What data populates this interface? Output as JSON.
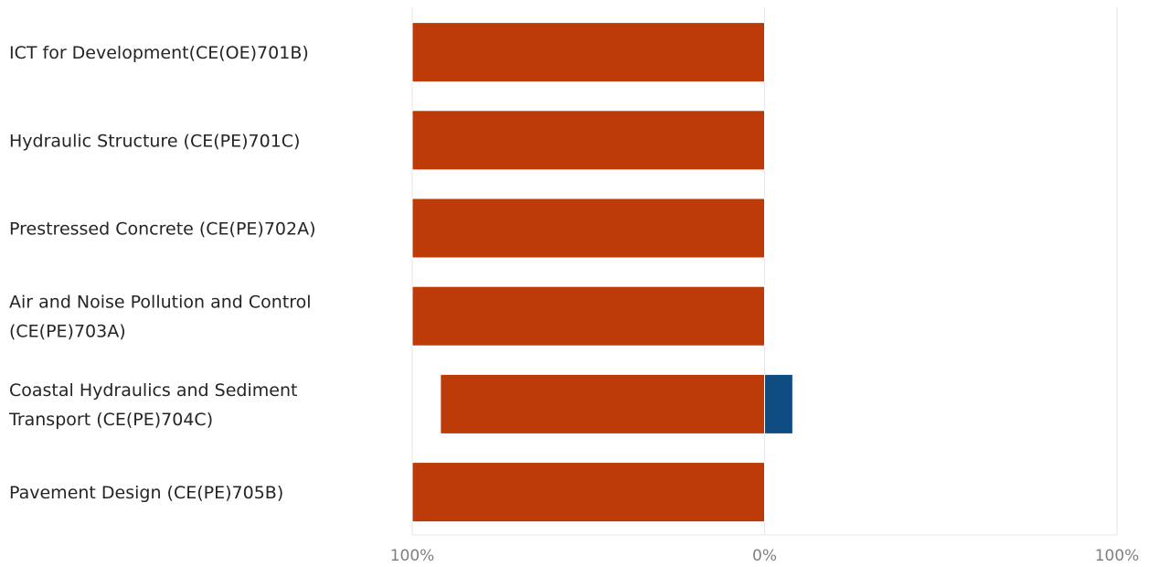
{
  "chart_data": {
    "type": "bar",
    "orientation": "horizontal",
    "layout": "diverging-stacked",
    "categories": [
      [
        "ICT for Development(CE(OE)701B)"
      ],
      [
        "Hydraulic Structure (CE(PE)701C)"
      ],
      [
        "Prestressed Concrete (CE(PE)702A)"
      ],
      [
        "Air and Noise Pollution and Control",
        "(CE(PE)703A)"
      ],
      [
        "Coastal Hydraulics and Sediment",
        "Transport (CE(PE)704C)"
      ],
      [
        "Pavement Design (CE(PE)705B)"
      ]
    ],
    "series": [
      {
        "values": [
          100,
          100,
          100,
          100,
          92,
          100
        ],
        "color": "#bc3b08",
        "direction": "left"
      },
      {
        "values": [
          0,
          0,
          0,
          0,
          8,
          0
        ],
        "color": "#0f4c81",
        "direction": "right"
      }
    ],
    "x_ticks": [
      "100%",
      "0%",
      "100%"
    ],
    "xlim": [
      -100,
      100
    ],
    "grid": true,
    "legend": "none"
  }
}
